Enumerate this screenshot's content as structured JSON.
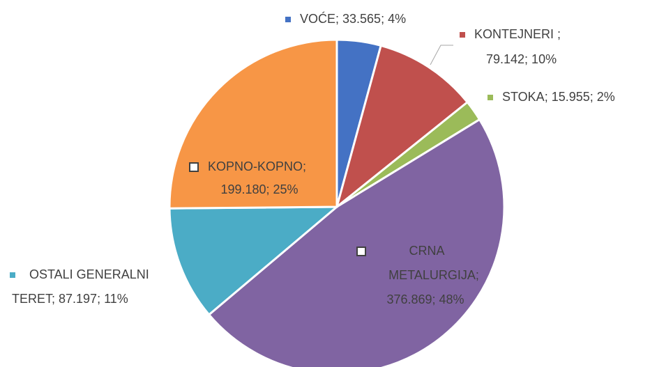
{
  "chart_data": {
    "type": "pie",
    "slices": [
      {
        "label_lines": [
          "VOĆE; 33.565; 4%"
        ],
        "value": 33565,
        "color": "#4472c4"
      },
      {
        "label_lines": [
          "KONTEJNERI ;",
          "79.142; 10%"
        ],
        "value": 79142,
        "color": "#c0504d"
      },
      {
        "label_lines": [
          "STOKA; 15.955; 2%"
        ],
        "value": 15955,
        "color": "#9bbb59"
      },
      {
        "label_lines": [
          "CRNA",
          "METALURGIJA;",
          "376.869; 48%"
        ],
        "value": 376869,
        "color": "#8064a2"
      },
      {
        "label_lines": [
          "OSTALI GENERALNI",
          "TERET; 87.197; 11%"
        ],
        "value": 87197,
        "color": "#4bacc6"
      },
      {
        "label_lines": [
          "KOPNO-KOPNO;",
          "199.180; 25%"
        ],
        "value": 199180,
        "color": "#f79646"
      }
    ]
  }
}
